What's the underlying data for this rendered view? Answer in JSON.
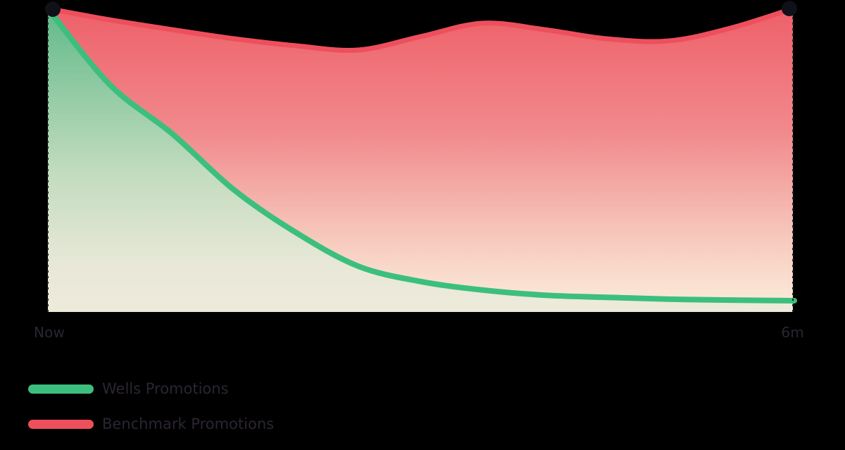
{
  "background_color": "#000000",
  "chart_data": {
    "type": "area",
    "title": "",
    "xlabel": "",
    "ylabel": "",
    "x_unit": "months",
    "x": [
      0,
      0.5,
      1,
      1.5,
      2,
      2.5,
      3,
      3.5,
      4,
      4.5,
      5,
      5.5,
      6
    ],
    "series": [
      {
        "name": "Wells Promotions",
        "color": "#3cbf7d",
        "fill_gradient": [
          "#60b989",
          "#c3dcc0",
          "#edeadb"
        ],
        "values": [
          99.5,
          74.5,
          58.5,
          40,
          26,
          15,
          10,
          7.2,
          5.5,
          4.8,
          4.2,
          3.9,
          3.7
        ]
      },
      {
        "name": "Benchmark Promotions",
        "color": "#ee4f5c",
        "fill_gradient": [
          "#ee5f68",
          "#f18b8e",
          "#f7cdc0",
          "#fbeedd"
        ],
        "values": [
          99.5,
          95.8,
          92.6,
          89.6,
          87.3,
          85.9,
          90.3,
          94.7,
          92.6,
          89.6,
          88.9,
          93.1,
          99.5
        ]
      }
    ],
    "ylim": [
      0,
      100
    ],
    "y_axis_visible": false,
    "grid": false,
    "x_axis_labels": {
      "start": "Now",
      "end": "6m"
    },
    "legend_position": "bottom-left",
    "endpoint_marker_color": "#0e1118",
    "edge_guide_style": "dashed",
    "edge_guide_color": "#23262e"
  }
}
